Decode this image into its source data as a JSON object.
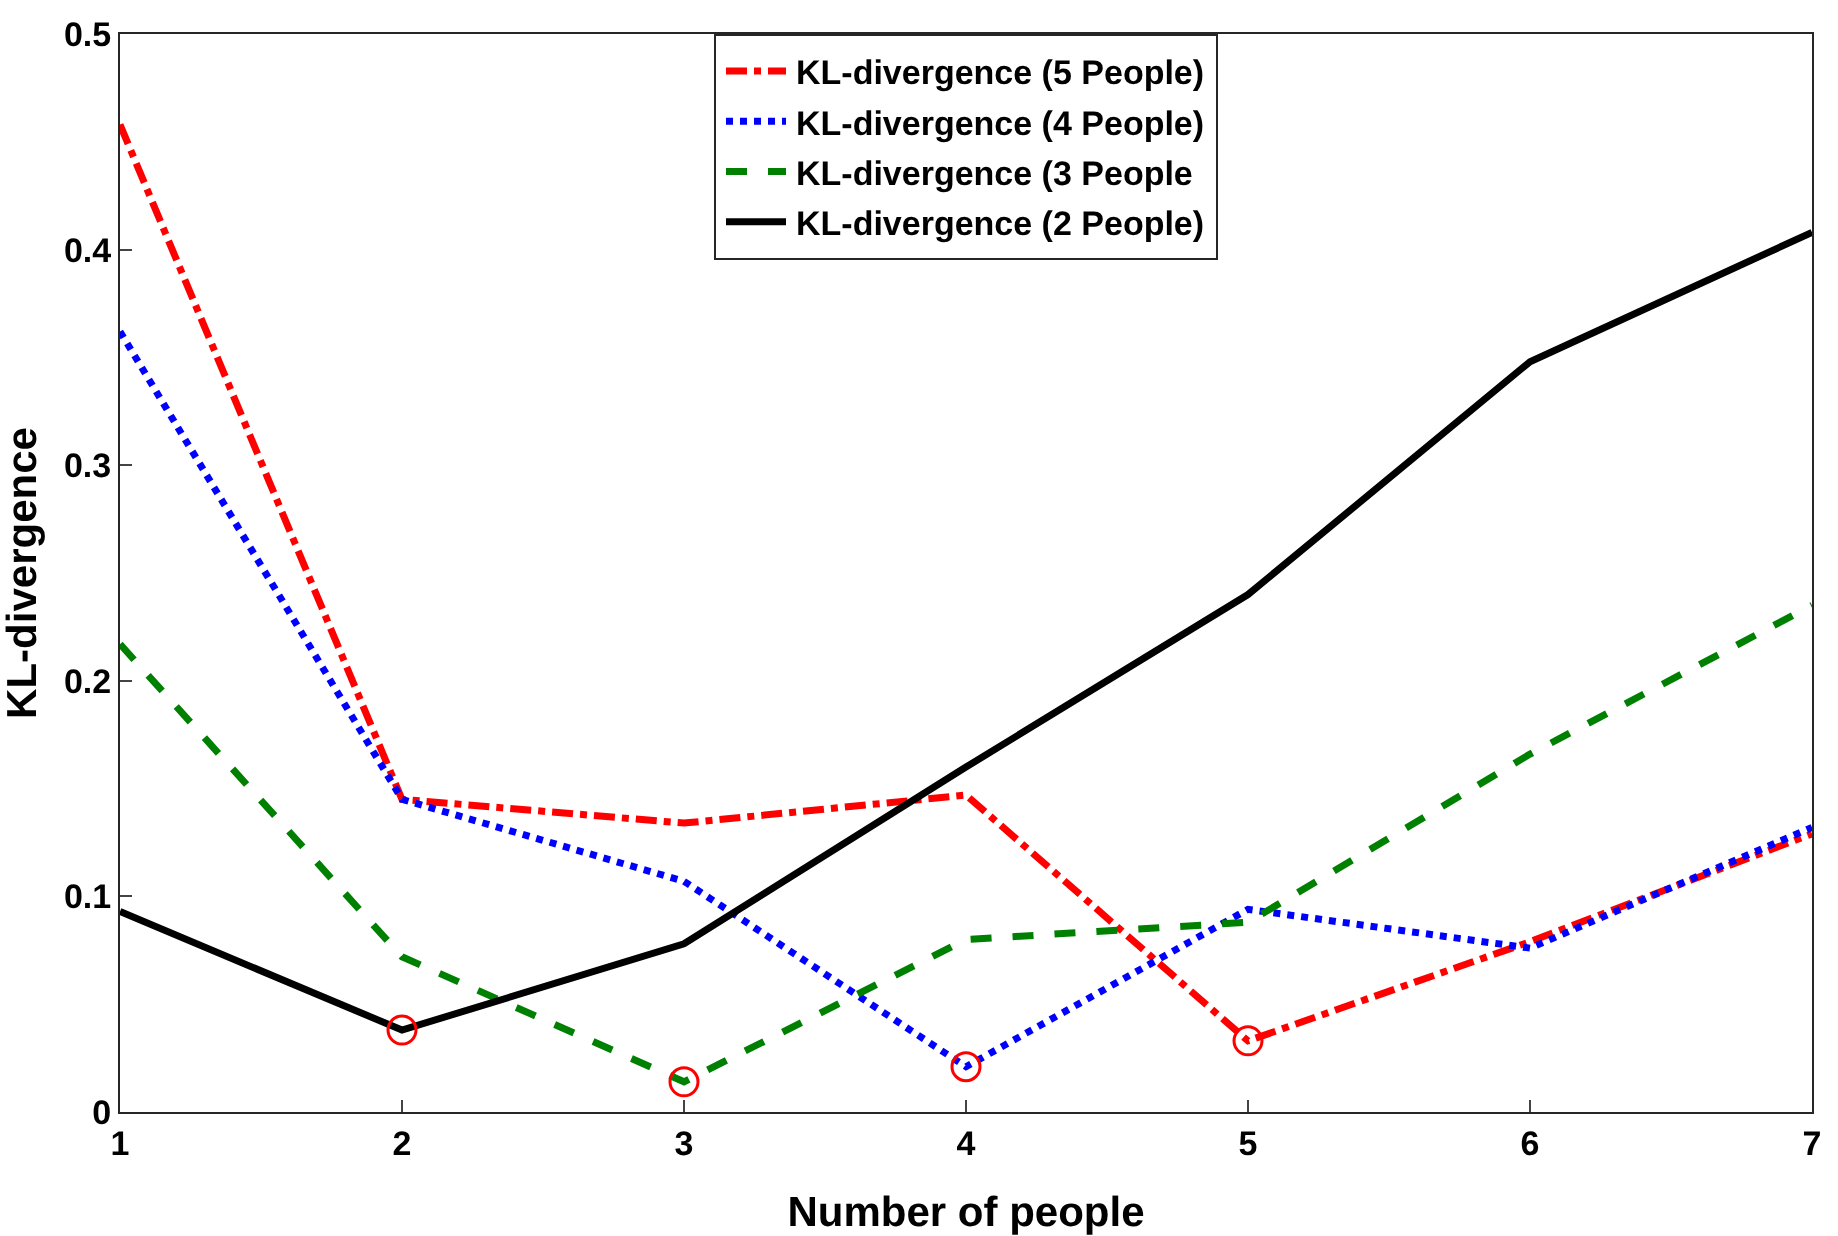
{
  "chart_data": {
    "type": "line",
    "xlabel": "Number of people",
    "ylabel": "KL-divergence",
    "x": [
      1,
      2,
      3,
      4,
      5,
      6,
      7
    ],
    "series": [
      {
        "name": "KL-divergence (5 People)",
        "color": "#ff0000",
        "line_style": "dashdot",
        "values": [
          0.458,
          0.145,
          0.134,
          0.147,
          0.033,
          0.079,
          0.129
        ]
      },
      {
        "name": "KL-divergence (4 People)",
        "color": "#0000ff",
        "line_style": "dotted",
        "values": [
          0.362,
          0.145,
          0.107,
          0.021,
          0.094,
          0.076,
          0.132
        ]
      },
      {
        "name": "KL-divergence (3 People",
        "color": "#008000",
        "line_style": "dashed",
        "values": [
          0.217,
          0.072,
          0.014,
          0.08,
          0.088,
          0.166,
          0.235
        ]
      },
      {
        "name": "KL-divergence (2 People)",
        "color": "#000000",
        "line_style": "solid",
        "values": [
          0.093,
          0.038,
          0.078,
          0.16,
          0.24,
          0.348,
          0.408
        ]
      },
      {
        "type": "scatter",
        "color": "#ff0000",
        "marker": "circle",
        "x": [
          2,
          3,
          4,
          5
        ],
        "values": [
          0.038,
          0.014,
          0.021,
          0.033
        ]
      }
    ],
    "xlim": [
      1,
      7
    ],
    "xticks": [
      1,
      2,
      3,
      4,
      5,
      6,
      7
    ],
    "ylim": [
      0,
      0.5
    ],
    "yticks": [
      0,
      0.1,
      0.2,
      0.3,
      0.4,
      0.5
    ],
    "grid": false,
    "legend": "top",
    "marker": "none"
  }
}
